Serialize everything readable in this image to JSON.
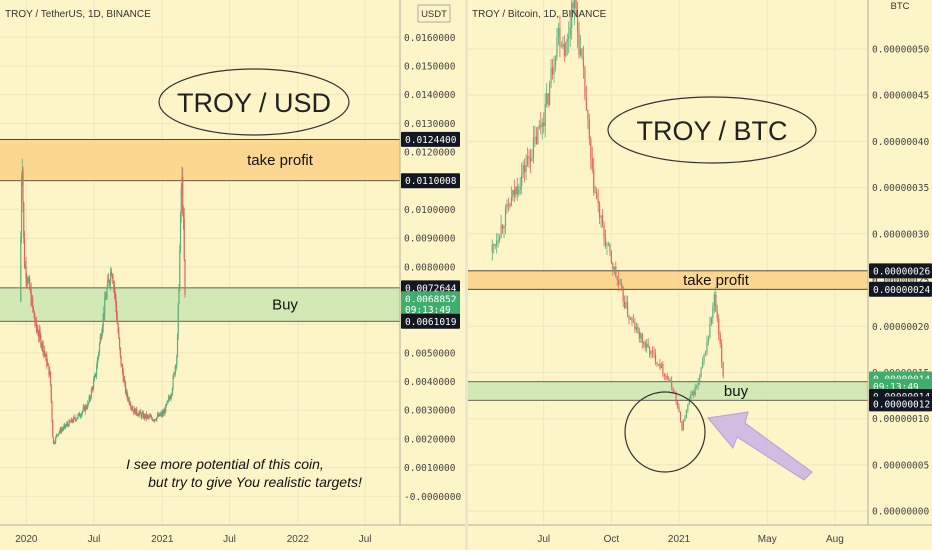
{
  "colors": {
    "background": "#fdf5c8",
    "up": "#5fae7a",
    "down": "#e0665c",
    "profit_zone": "#fcd48a",
    "buy_zone": "#cde8b4",
    "axis_text": "#444444",
    "price_tag_dark": "#131722",
    "price_tag_green": "#3fae6d",
    "arrow": "#c7b3e6"
  },
  "left": {
    "header": "TROY / TetherUS, 1D, BINANCE",
    "currency": "USDT",
    "bubble": "TROY / USD",
    "take_profit_label": "take profit",
    "buy_label": "Buy",
    "note_line1": "I see more potential of this coin,",
    "note_line2": "but try to give You realistic targets!",
    "tags": [
      {
        "text": "0.0124400",
        "style": "dark",
        "value": 0.01244
      },
      {
        "text": "0.0110008",
        "style": "dark",
        "value": 0.0110008
      },
      {
        "text": "0.0072644",
        "style": "dark",
        "value": 0.0072644
      },
      {
        "text": "0.0068852",
        "style": "green",
        "value": 0.0068852
      },
      {
        "text": "09:13:49",
        "style": "green",
        "value": 0.00651
      },
      {
        "text": "0.0061019",
        "style": "dark",
        "value": 0.0061019
      }
    ],
    "time_labels": [
      "2020",
      "Jul",
      "2021",
      "Jul",
      "2022",
      "Jul"
    ]
  },
  "right": {
    "header": "TROY / Bitcoin, 1D, BINANCE",
    "currency": "BTC",
    "bubble": "TROY / BTC",
    "take_profit_label": "take profit",
    "buy_label": "buy",
    "tags": [
      {
        "text": "0.00000026",
        "style": "dark",
        "value": 2.6e-07
      },
      {
        "text": "0.00000024",
        "style": "dark",
        "value": 2.4e-07
      },
      {
        "text": "0.00000014",
        "style": "green",
        "value": 1.43e-07
      },
      {
        "text": "09:13:49",
        "style": "green",
        "value": 1.35e-07
      },
      {
        "text": "0.00000014",
        "style": "dark",
        "value": 1.24e-07
      },
      {
        "text": "0.00000012",
        "style": "dark",
        "value": 1.16e-07
      }
    ],
    "time_labels": [
      "Jul",
      "Oct",
      "2021",
      "May",
      "Aug"
    ]
  },
  "chart_data": [
    {
      "type": "candlestick",
      "title": "TROY / TetherUS, 1D, BINANCE",
      "ylabel": "USDT",
      "ylim": [
        -0.001,
        0.0173
      ],
      "y_ticks": [
        0.0,
        0.001,
        0.002,
        0.003,
        0.004,
        0.005,
        0.006,
        0.007,
        0.008,
        0.009,
        0.01,
        0.011,
        0.012,
        0.013,
        0.014,
        0.015,
        0.016
      ],
      "y_tick_labels": [
        "-0.0000000",
        "0.0010000",
        "0.0020000",
        "0.0030000",
        "0.0040000",
        "0.0050000",
        "0.0060000",
        "0.0070000",
        "0.0080000",
        "0.0090000",
        "0.0100000",
        "0.0110000",
        "0.0120000",
        "0.0130000",
        "0.0140000",
        "0.0150000",
        "0.0160000"
      ],
      "x_labels": [
        "2020",
        "Jul",
        "2021",
        "Jul",
        "2022",
        "Jul"
      ],
      "zones": [
        {
          "label": "take profit",
          "low": 0.0110008,
          "high": 0.01244
        },
        {
          "label": "Buy",
          "low": 0.0061019,
          "high": 0.0072644
        }
      ],
      "price_path": [
        [
          "2019-12-15",
          0.0068
        ],
        [
          "2019-12-20",
          0.0124
        ],
        [
          "2019-12-26",
          0.0082
        ],
        [
          "2020-01-10",
          0.0072
        ],
        [
          "2020-01-25",
          0.006
        ],
        [
          "2020-02-15",
          0.0052
        ],
        [
          "2020-03-05",
          0.0042
        ],
        [
          "2020-03-13",
          0.0018
        ],
        [
          "2020-03-25",
          0.0022
        ],
        [
          "2020-04-20",
          0.0025
        ],
        [
          "2020-05-20",
          0.0028
        ],
        [
          "2020-06-15",
          0.0032
        ],
        [
          "2020-07-05",
          0.0042
        ],
        [
          "2020-07-25",
          0.0062
        ],
        [
          "2020-08-05",
          0.0072
        ],
        [
          "2020-08-18",
          0.008
        ],
        [
          "2020-08-28",
          0.0068
        ],
        [
          "2020-09-10",
          0.0048
        ],
        [
          "2020-09-25",
          0.0036
        ],
        [
          "2020-10-15",
          0.003
        ],
        [
          "2020-11-10",
          0.0028
        ],
        [
          "2020-12-10",
          0.0027
        ],
        [
          "2021-01-05",
          0.0029
        ],
        [
          "2021-01-25",
          0.0036
        ],
        [
          "2021-02-10",
          0.005
        ],
        [
          "2021-02-18",
          0.009
        ],
        [
          "2021-02-22",
          0.0113
        ],
        [
          "2021-02-27",
          0.0094
        ],
        [
          "2021-03-03",
          0.0069
        ]
      ],
      "annotations": [
        "TROY / USD",
        "I see more potential of this coin,",
        "but try to give You realistic targets!"
      ]
    },
    {
      "type": "candlestick",
      "title": "TROY / Bitcoin, 1D, BINANCE",
      "ylabel": "BTC",
      "ylim": [
        -1.5e-08,
        5.53e-07
      ],
      "y_ticks": [
        0.0,
        5e-08,
        1e-07,
        1.5e-07,
        2e-07,
        2.5e-07,
        3e-07,
        3.5e-07,
        4e-07,
        4.5e-07,
        5e-07
      ],
      "y_tick_labels": [
        "0.00000000",
        "0.00000005",
        "0.00000010",
        "0.00000015",
        "0.00000020",
        "0.00000025",
        "0.00000030",
        "0.00000035",
        "0.00000040",
        "0.00000045",
        "0.00000050"
      ],
      "x_labels": [
        "Jul",
        "Oct",
        "2021",
        "May",
        "Aug"
      ],
      "zones": [
        {
          "label": "take profit",
          "low": 2.4e-07,
          "high": 2.6e-07
        },
        {
          "label": "buy",
          "low": 1.2e-07,
          "high": 1.4e-07
        }
      ],
      "price_path": [
        [
          "2020-04-20",
          2.8e-07
        ],
        [
          "2020-05-10",
          3.2e-07
        ],
        [
          "2020-05-30",
          3.6e-07
        ],
        [
          "2020-06-20",
          4e-07
        ],
        [
          "2020-07-05",
          4.4e-07
        ],
        [
          "2020-07-20",
          5.2e-07
        ],
        [
          "2020-08-01",
          5e-07
        ],
        [
          "2020-08-10",
          5.6e-07
        ],
        [
          "2020-08-25",
          4.6e-07
        ],
        [
          "2020-09-05",
          3.6e-07
        ],
        [
          "2020-09-20",
          3e-07
        ],
        [
          "2020-10-05",
          2.6e-07
        ],
        [
          "2020-10-25",
          2.1e-07
        ],
        [
          "2020-11-15",
          1.8e-07
        ],
        [
          "2020-12-05",
          1.6e-07
        ],
        [
          "2020-12-25",
          1.3e-07
        ],
        [
          "2021-01-05",
          9e-08
        ],
        [
          "2021-01-15",
          1.2e-07
        ],
        [
          "2021-01-28",
          1.4e-07
        ],
        [
          "2021-02-10",
          1.9e-07
        ],
        [
          "2021-02-18",
          2.3e-07
        ],
        [
          "2021-02-24",
          1.9e-07
        ],
        [
          "2021-03-03",
          1.4e-07
        ]
      ],
      "annotations": [
        "TROY / BTC"
      ]
    }
  ]
}
